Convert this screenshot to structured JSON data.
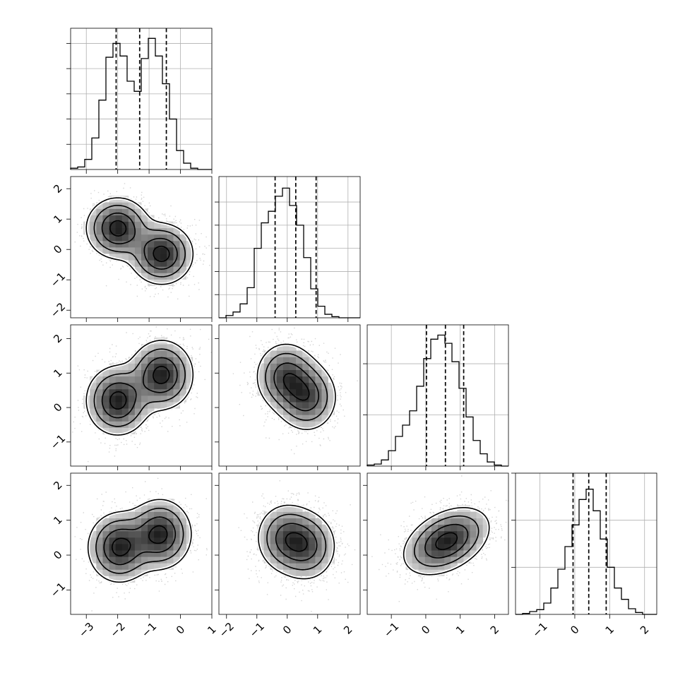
{
  "chart_data": {
    "type": "corner",
    "n_params": 4,
    "grid": true,
    "colors": {
      "line": "#000000",
      "points": "#000000",
      "grid": "#b0b0b0"
    },
    "axis_ranges": [
      [
        -3.5,
        1.0
      ],
      [
        -2.25,
        2.4
      ],
      [
        -1.7,
        2.4
      ],
      [
        -1.7,
        2.35
      ]
    ],
    "tick_labels": [
      [
        {
          "v": -3,
          "t": "−3"
        },
        {
          "v": -2,
          "t": "−2"
        },
        {
          "v": -1,
          "t": "−1"
        },
        {
          "v": 0,
          "t": "0"
        },
        {
          "v": 1,
          "t": "1"
        }
      ],
      [
        {
          "v": -2,
          "t": "−2"
        },
        {
          "v": -1,
          "t": "−1"
        },
        {
          "v": 0,
          "t": "0"
        },
        {
          "v": 1,
          "t": "1"
        },
        {
          "v": 2,
          "t": "2"
        }
      ],
      [
        {
          "v": -1,
          "t": "−1"
        },
        {
          "v": 0,
          "t": "0"
        },
        {
          "v": 1,
          "t": "1"
        },
        {
          "v": 2,
          "t": "2"
        }
      ],
      [
        {
          "v": -1,
          "t": "−1"
        },
        {
          "v": 0,
          "t": "0"
        },
        {
          "v": 1,
          "t": "1"
        },
        {
          "v": 2,
          "t": "2"
        }
      ]
    ],
    "histograms": [
      {
        "param": 0,
        "bin_edges": [
          -3.5,
          -3.275,
          -3.05,
          -2.825,
          -2.6,
          -2.375,
          -2.15,
          -1.925,
          -1.7,
          -1.475,
          -1.25,
          -1.025,
          -0.8,
          -0.575,
          -0.35,
          -0.125,
          0.1,
          0.325,
          0.55,
          0.775,
          1.0
        ],
        "counts": [
          1,
          2,
          8,
          25,
          55,
          89,
          100,
          90,
          70,
          62,
          88,
          104,
          90,
          68,
          40,
          15,
          5,
          1,
          0,
          0
        ],
        "quantiles": [
          -2.05,
          -1.3,
          -0.45
        ],
        "y_ticks": [
          20,
          40,
          60,
          80,
          100
        ],
        "ymax": 112
      },
      {
        "param": 1,
        "bin_edges": [
          -2.25,
          -2.0175,
          -1.785,
          -1.5525,
          -1.32,
          -1.0875,
          -0.855,
          -0.6225,
          -0.39,
          -0.1575,
          0.075,
          0.3075,
          0.54,
          0.7725,
          1.005,
          1.2375,
          1.47,
          1.7025,
          1.935,
          2.1675,
          2.4
        ],
        "counts": [
          0,
          2,
          5,
          12,
          26,
          60,
          82,
          92,
          105,
          112,
          97,
          80,
          52,
          25,
          10,
          3,
          1,
          0,
          0,
          0
        ],
        "quantiles": [
          -0.4,
          0.28,
          0.95
        ],
        "y_ticks": [
          20,
          40,
          60,
          80,
          100
        ],
        "ymax": 122
      },
      {
        "param": 2,
        "bin_edges": [
          -1.7,
          -1.495,
          -1.29,
          -1.085,
          -0.88,
          -0.675,
          -0.47,
          -0.265,
          -0.06,
          0.145,
          0.35,
          0.555,
          0.76,
          0.965,
          1.17,
          1.375,
          1.58,
          1.785,
          1.99,
          2.195,
          2.4
        ],
        "counts": [
          1,
          2,
          6,
          15,
          29,
          40,
          54,
          78,
          105,
          124,
          128,
          120,
          102,
          76,
          48,
          25,
          12,
          4,
          1,
          0
        ],
        "quantiles": [
          0.02,
          0.57,
          1.1
        ],
        "y_ticks": [
          50,
          100
        ],
        "ymax": 138
      },
      {
        "param": 3,
        "bin_edges": [
          -1.7,
          -1.4975,
          -1.295,
          -1.0925,
          -0.89,
          -0.6875,
          -0.485,
          -0.2825,
          -0.08,
          0.1225,
          0.325,
          0.5275,
          0.73,
          0.9325,
          1.135,
          1.3375,
          1.54,
          1.7425,
          1.945,
          2.1475,
          2.35
        ],
        "counts": [
          0,
          1,
          3,
          5,
          12,
          28,
          48,
          72,
          95,
          122,
          133,
          110,
          80,
          50,
          28,
          16,
          6,
          2,
          0,
          0
        ],
        "quantiles": [
          -0.05,
          0.4,
          0.9
        ],
        "y_ticks": [
          50,
          100,
          150
        ],
        "ymax": 150
      }
    ],
    "pair_distributions": [
      {
        "x_param": 0,
        "y_param": 1,
        "components": [
          {
            "mean": [
              -2.0,
              0.7
            ],
            "sd": [
              0.5,
              0.5
            ],
            "rho": 0,
            "weight": 0.5
          },
          {
            "mean": [
              -0.6,
              -0.15
            ],
            "sd": [
              0.5,
              0.5
            ],
            "rho": 0,
            "weight": 0.5
          }
        ]
      },
      {
        "x_param": 0,
        "y_param": 2,
        "components": [
          {
            "mean": [
              -2.0,
              0.2
            ],
            "sd": [
              0.5,
              0.5
            ],
            "rho": 0,
            "weight": 0.5
          },
          {
            "mean": [
              -0.6,
              0.95
            ],
            "sd": [
              0.5,
              0.5
            ],
            "rho": 0,
            "weight": 0.5
          }
        ]
      },
      {
        "x_param": 1,
        "y_param": 2,
        "components": [
          {
            "mean": [
              -0.05,
              0.9
            ],
            "sd": [
              0.5,
              0.5
            ],
            "rho": 0,
            "weight": 0.5
          },
          {
            "mean": [
              0.65,
              0.3
            ],
            "sd": [
              0.5,
              0.5
            ],
            "rho": 0,
            "weight": 0.5
          }
        ]
      },
      {
        "x_param": 0,
        "y_param": 3,
        "components": [
          {
            "mean": [
              -1.95,
              0.22
            ],
            "sd": [
              0.5,
              0.5
            ],
            "rho": 0,
            "weight": 0.5
          },
          {
            "mean": [
              -0.65,
              0.6
            ],
            "sd": [
              0.5,
              0.5
            ],
            "rho": 0,
            "weight": 0.5
          }
        ]
      },
      {
        "x_param": 1,
        "y_param": 3,
        "components": [
          {
            "mean": [
              -0.05,
              0.5
            ],
            "sd": [
              0.5,
              0.5
            ],
            "rho": 0,
            "weight": 0.5
          },
          {
            "mean": [
              0.65,
              0.25
            ],
            "sd": [
              0.5,
              0.5
            ],
            "rho": 0,
            "weight": 0.5
          }
        ]
      },
      {
        "x_param": 2,
        "y_param": 3,
        "components": [
          {
            "mean": [
              0.6,
              0.4
            ],
            "sd": [
              0.62,
              0.48
            ],
            "rho": 0.4,
            "weight": 1.0
          }
        ]
      }
    ],
    "contour_levels_sigma": [
      0.5,
      1.0,
      1.5,
      2.0
    ]
  }
}
